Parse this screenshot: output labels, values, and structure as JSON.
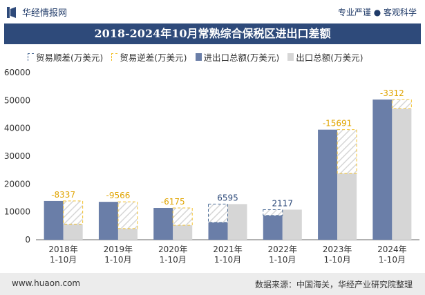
{
  "header": {
    "site_name": "华经情报网",
    "slogan": "专业严谨 ● 客观科学"
  },
  "footer": {
    "website": "www.huaon.com",
    "source": "数据来源：中国海关，华经产业研究院整理"
  },
  "colors": {
    "import": "#6a7ea8",
    "export": "#d6d6d6",
    "surplus_border": "#4e6e98",
    "deficit_border": "#f2c12e",
    "surplus_label": "#2e4a7a",
    "deficit_label": "#e0a400",
    "title_bg": "#2e4a7a"
  },
  "chart_data": {
    "type": "bar",
    "title": "2018-2024年10月常熟综合保税区进出口差额",
    "categories": [
      "2018年\n1-10月",
      "2019年\n1-10月",
      "2020年\n1-10月",
      "2021年\n1-10月",
      "2022年\n1-10月",
      "2023年\n1-10月",
      "2024年\n1-10月"
    ],
    "series": [
      {
        "name": "进出口总额(万美元)",
        "key": "import",
        "values": [
          13900,
          13600,
          11400,
          6200,
          8700,
          39500,
          50300
        ]
      },
      {
        "name": "出口总额(万美元)",
        "key": "export",
        "values": [
          5600,
          4000,
          5200,
          12800,
          10800,
          23800,
          47000
        ]
      }
    ],
    "balance": {
      "values": [
        -8337,
        -9566,
        -6175,
        6595,
        2117,
        -15691,
        -3312
      ],
      "surplus_name": "贸易顺差(万美元)",
      "deficit_name": "贸易逆差(万美元)"
    },
    "ylim": [
      0,
      60000
    ],
    "yticks": [
      0,
      10000,
      20000,
      30000,
      40000,
      50000,
      60000
    ],
    "legend_position": "top-left",
    "grid": false
  }
}
